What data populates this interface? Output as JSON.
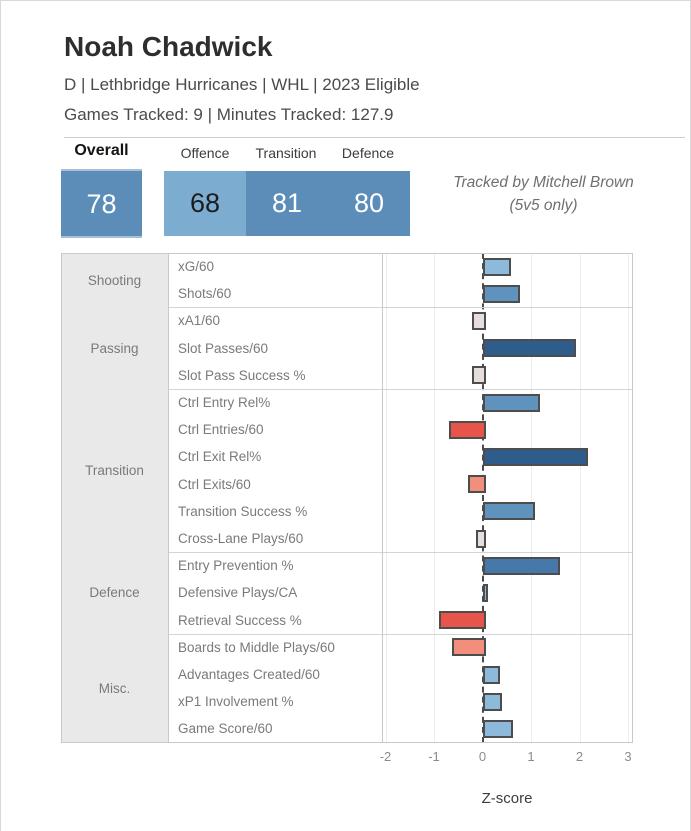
{
  "header": {
    "title": "Noah Chadwick",
    "subtitle": "D | Lethbridge Hurricanes | WHL | 2023 Eligible",
    "tracking": "Games Tracked: 9 | Minutes Tracked: 127.9"
  },
  "scores": {
    "overall_label": "Overall",
    "overall_value": "78",
    "overall_bg": "#5c8db9",
    "sub": [
      {
        "label": "Offence",
        "value": "68",
        "bg": "#7cadd0",
        "text_color": "#1c1c1c"
      },
      {
        "label": "Transition",
        "value": "81",
        "bg": "#5c8db9",
        "text_color": "#ffffff"
      },
      {
        "label": "Defence",
        "value": "80",
        "bg": "#5c8db9",
        "text_color": "#ffffff"
      }
    ],
    "credit_line1": "Tracked by Mitchell Brown",
    "credit_line2": "(5v5 only)"
  },
  "chart_data": {
    "type": "bar",
    "orientation": "horizontal",
    "xlabel": "Z-score",
    "xlim": [
      -2.07,
      3.13
    ],
    "xticks": [
      -2,
      -1,
      0,
      1,
      2,
      3
    ],
    "zero_line_color": "#4c4c4c",
    "bar_border_color": "#4d4d4d",
    "groups": [
      {
        "category": "Shooting",
        "metrics": [
          {
            "label": "xG/60",
            "value": 0.5,
            "color": "#8db9db"
          },
          {
            "label": "Shots/60",
            "value": 0.7,
            "color": "#5f93be"
          }
        ]
      },
      {
        "category": "Passing",
        "metrics": [
          {
            "label": "xA1/60",
            "value": -0.22,
            "color": "#e5dedd"
          },
          {
            "label": "Slot Passes/60",
            "value": 1.85,
            "color": "#2f5d8b"
          },
          {
            "label": "Slot Pass Success %",
            "value": -0.22,
            "color": "#e5dedd"
          }
        ]
      },
      {
        "category": "Transition",
        "metrics": [
          {
            "label": "Ctrl Entry Rel%",
            "value": 1.1,
            "color": "#5f93be"
          },
          {
            "label": "Ctrl Entries/60",
            "value": -0.7,
            "color": "#e7544b"
          },
          {
            "label": "Ctrl Exit Rel%",
            "value": 2.1,
            "color": "#2f5d8b"
          },
          {
            "label": "Ctrl Exits/60",
            "value": -0.3,
            "color": "#f28f7c"
          },
          {
            "label": "Transition Success %",
            "value": 1.0,
            "color": "#5f93be"
          },
          {
            "label": "Cross-Lane Plays/60",
            "value": -0.14,
            "color": "#e5dedd"
          }
        ]
      },
      {
        "category": "Defence",
        "metrics": [
          {
            "label": "Entry Prevention %",
            "value": 1.52,
            "color": "#4678aa"
          },
          {
            "label": "Defensive Plays/CA",
            "value": 0.03,
            "color": "#8db9db"
          },
          {
            "label": "Retrieval Success %",
            "value": -0.9,
            "color": "#e7544b"
          }
        ]
      },
      {
        "category": "Misc.",
        "metrics": [
          {
            "label": "Boards to Middle Plays/60",
            "value": -0.63,
            "color": "#f28f7c"
          },
          {
            "label": "Advantages Created/60",
            "value": 0.28,
            "color": "#8db9db"
          },
          {
            "label": "xP1 Involvement %",
            "value": 0.31,
            "color": "#8db9db"
          },
          {
            "label": "Game Score/60",
            "value": 0.54,
            "color": "#8db9db"
          }
        ]
      }
    ]
  }
}
